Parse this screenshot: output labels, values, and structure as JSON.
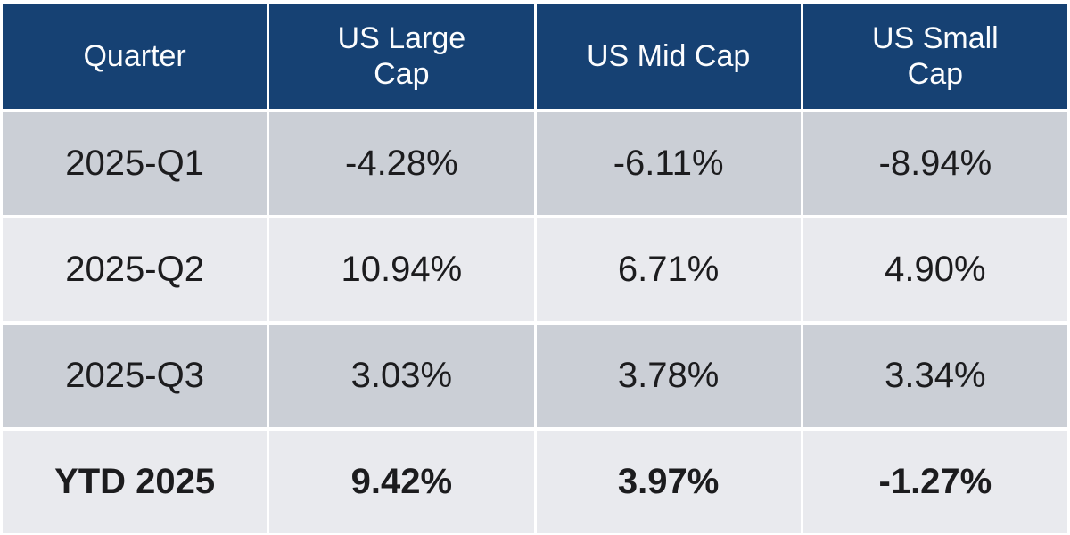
{
  "table": {
    "header": {
      "columns": [
        {
          "label": "Quarter"
        },
        {
          "label": "US Large Cap"
        },
        {
          "label": "US Mid Cap"
        },
        {
          "label": "US Small Cap"
        }
      ]
    },
    "rows": [
      {
        "cells": [
          "2025-Q1",
          "-4.28%",
          "-6.11%",
          "-8.94%"
        ]
      },
      {
        "cells": [
          "2025-Q2",
          "10.94%",
          "6.71%",
          "4.90%"
        ]
      },
      {
        "cells": [
          "2025-Q3",
          "3.03%",
          "3.78%",
          "3.34%"
        ]
      },
      {
        "cells": [
          "YTD 2025",
          "9.42%",
          "3.97%",
          "-1.27%"
        ]
      }
    ]
  },
  "colors": {
    "header_background": "#164173",
    "header_text": "#fcfdfe",
    "row_shade_dark": "#cbcfd6",
    "row_shade_light": "#e9eaee",
    "body_text": "#1c1c1e",
    "grid_lines": "#ffffff"
  },
  "chart_data": {
    "type": "table",
    "title": "",
    "categories": [
      "2025-Q1",
      "2025-Q2",
      "2025-Q3",
      "YTD 2025"
    ],
    "series": [
      {
        "name": "US Large Cap",
        "values": [
          -4.28,
          10.94,
          3.03,
          9.42
        ]
      },
      {
        "name": "US Mid Cap",
        "values": [
          -6.11,
          6.71,
          3.78,
          3.97
        ]
      },
      {
        "name": "US Small Cap",
        "values": [
          -8.94,
          4.9,
          3.34,
          -1.27
        ]
      }
    ],
    "value_unit": "%",
    "notes": "Quarterly percent returns table; YTD 2025 row shown in bold"
  }
}
